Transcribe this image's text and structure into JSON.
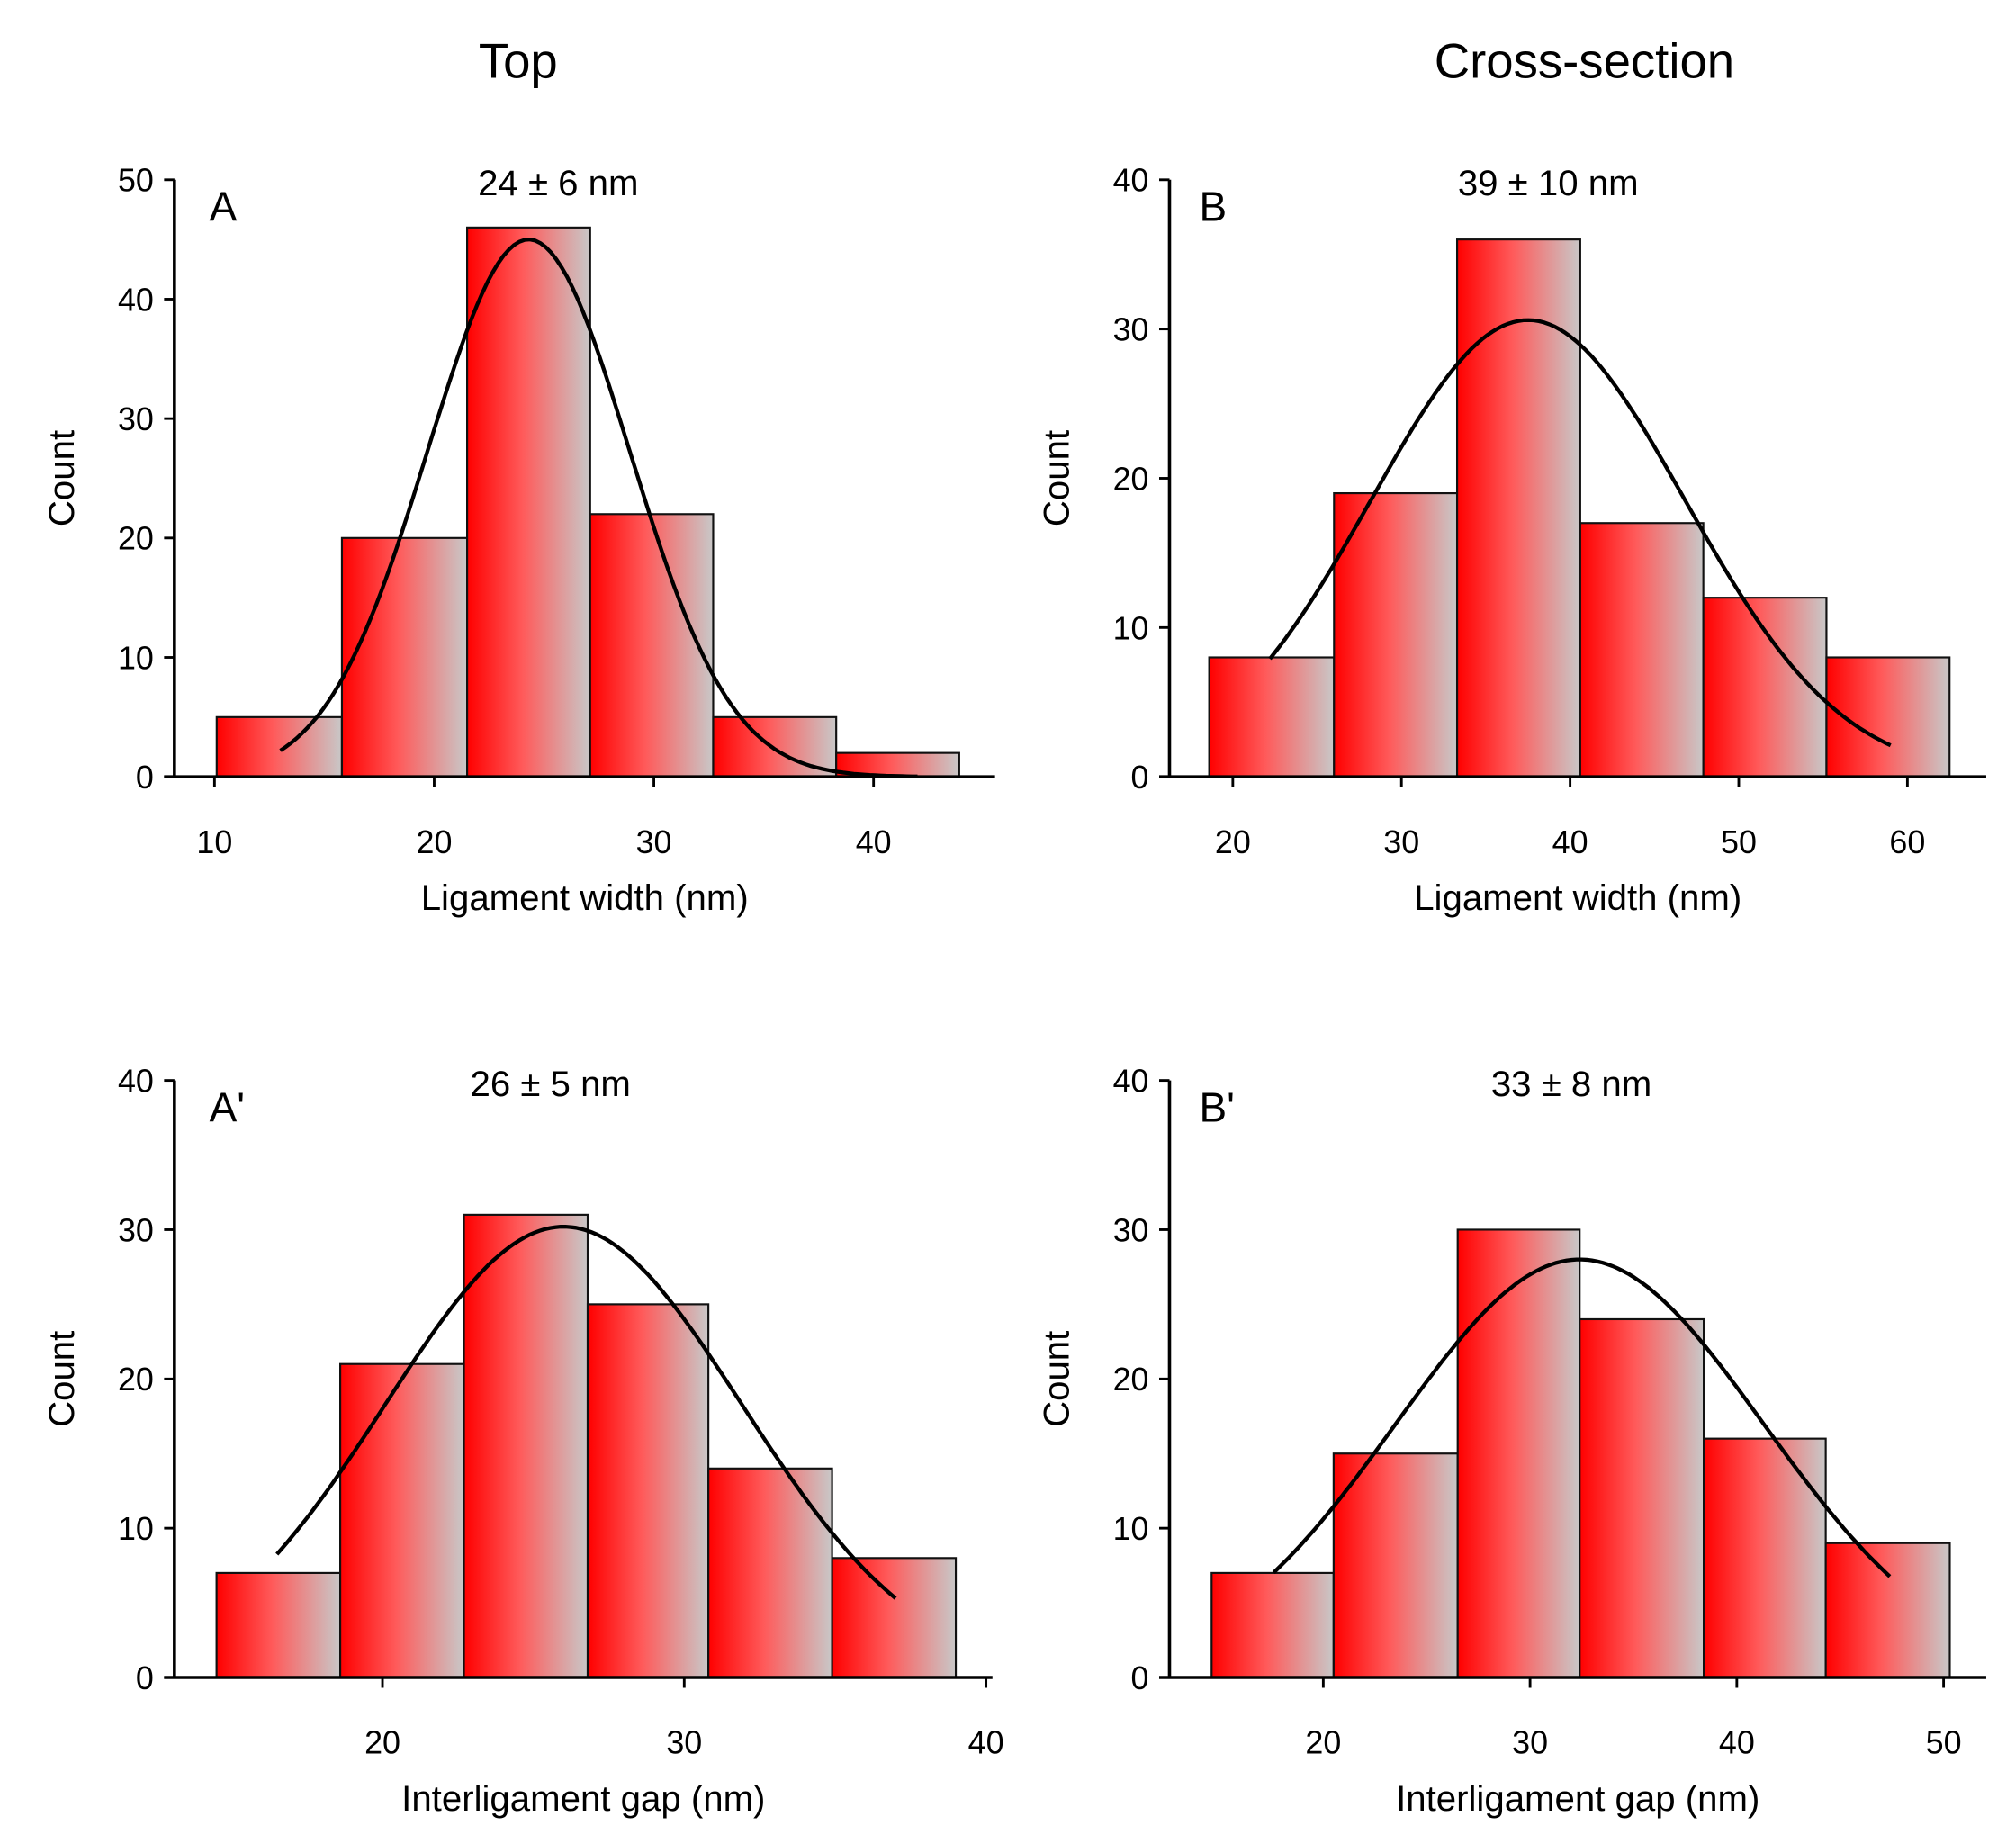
{
  "column_titles": [
    "Top",
    "Cross-section"
  ],
  "chart_data": [
    {
      "type": "bar",
      "panel": "A",
      "stat": "24 ± 6 nm",
      "xlabel": "Ligament width (nm)",
      "ylabel": "Count",
      "xlim": [
        8.2,
        46
      ],
      "ylim": [
        0,
        50
      ],
      "xticks": [
        10,
        20,
        30,
        40
      ],
      "yticks": [
        0,
        10,
        20,
        30,
        40,
        50
      ],
      "bin_edges": [
        10.1,
        15.8,
        21.5,
        27.1,
        32.7,
        38.3,
        43.9
      ],
      "values": [
        5,
        20,
        46,
        22,
        5,
        2
      ],
      "fit": {
        "type": "gaussian",
        "mean": 24.3,
        "sigma": 4.6,
        "amplitude": 45,
        "range": [
          13,
          42
        ]
      }
    },
    {
      "type": "bar",
      "panel": "B",
      "stat": "39 ± 10 nm",
      "xlabel": "Ligament width (nm)",
      "ylabel": "Count",
      "xlim": [
        16.2,
        64.5
      ],
      "ylim": [
        0,
        40
      ],
      "xticks": [
        20,
        30,
        40,
        50,
        60
      ],
      "yticks": [
        0,
        10,
        20,
        30,
        40
      ],
      "bin_edges": [
        18.6,
        26.0,
        33.3,
        40.6,
        47.9,
        55.2,
        62.5
      ],
      "values": [
        8,
        19,
        36,
        17,
        12,
        8
      ],
      "fit": {
        "type": "gaussian",
        "mean": 37.5,
        "sigma": 9.3,
        "amplitude": 30.6,
        "range": [
          22.2,
          59
        ]
      }
    },
    {
      "type": "bar",
      "panel": "A'",
      "stat": "26 ± 5 nm",
      "xlabel": "Interligament gap (nm)",
      "ylabel": "Count",
      "xlim": [
        13.2,
        40.2
      ],
      "ylim": [
        0,
        40
      ],
      "xticks": [
        20,
        30,
        40
      ],
      "yticks": [
        0,
        10,
        20,
        30,
        40
      ],
      "bin_edges": [
        14.5,
        18.6,
        22.7,
        26.8,
        30.8,
        34.9,
        39.0
      ],
      "values": [
        7,
        21,
        31,
        25,
        14,
        8
      ],
      "fit": {
        "type": "gaussian",
        "mean": 26.0,
        "sigma": 5.9,
        "amplitude": 30.2,
        "range": [
          16.5,
          37.0
        ]
      }
    },
    {
      "type": "bar",
      "panel": "B'",
      "stat": "33 ± 8 nm",
      "xlabel": "Interligament gap (nm)",
      "ylabel": "Count",
      "xlim": [
        12.5,
        52
      ],
      "ylim": [
        0,
        40
      ],
      "xticks": [
        20,
        30,
        40,
        50
      ],
      "yticks": [
        0,
        10,
        20,
        30,
        40
      ],
      "bin_edges": [
        14.6,
        20.5,
        26.5,
        32.4,
        38.4,
        44.3,
        50.3
      ],
      "values": [
        7,
        15,
        30,
        24,
        16,
        9
      ],
      "fit": {
        "type": "gaussian",
        "mean": 32.4,
        "sigma": 8.9,
        "amplitude": 28,
        "range": [
          17.6,
          47.4
        ]
      }
    }
  ]
}
